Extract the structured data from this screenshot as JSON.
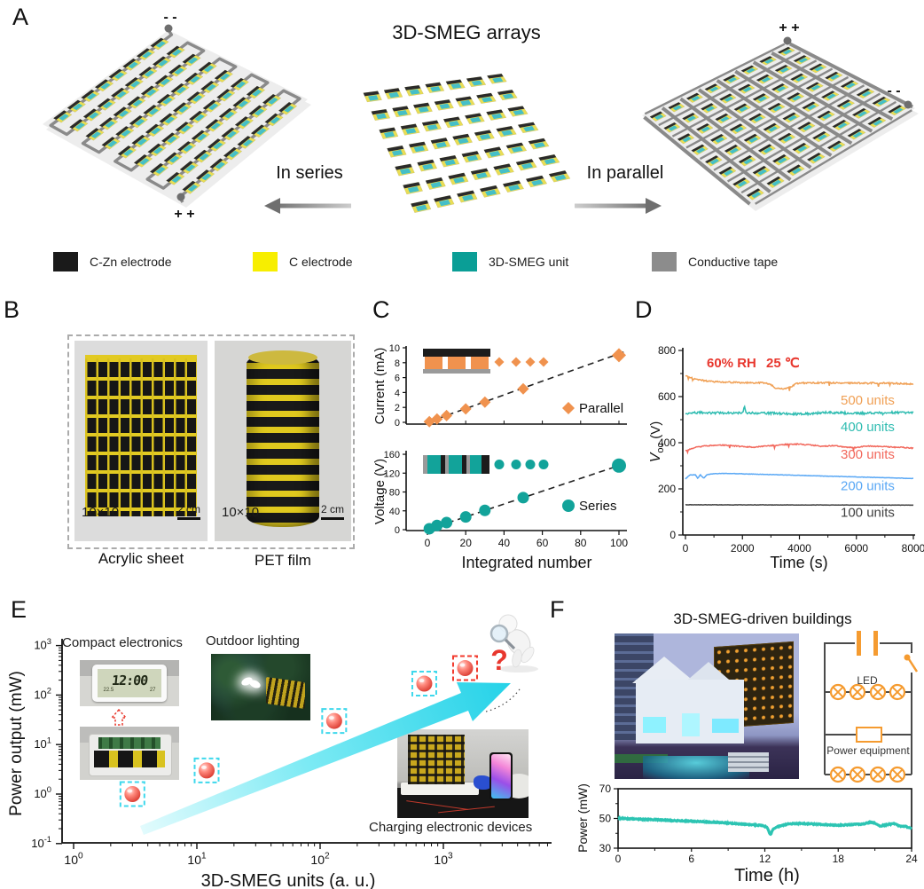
{
  "panel_a": {
    "label": "A",
    "title": "3D-SMEG arrays",
    "series_label": "In series",
    "parallel_label": "In parallel",
    "left_terminal_top": "- -",
    "left_terminal_bottom": "+ +",
    "right_terminal_top": "+ +",
    "right_terminal_side": "- -",
    "legend": [
      {
        "label": "C-Zn electrode",
        "color": "#1a1a1a"
      },
      {
        "label": "C electrode",
        "color": "#f7ee00"
      },
      {
        "label": "3D-SMEG unit",
        "color": "#0a9e96"
      },
      {
        "label": "Conductive tape",
        "color": "#8c8c8c"
      }
    ],
    "colors": {
      "sheet": "#ededed",
      "tape": "#8a8a8a",
      "unit_yellow": "#e9dd55",
      "unit_teal": "#45bfc7",
      "unit_black": "#2a2a2a",
      "terminal": "#6e6e6e"
    }
  },
  "panel_b": {
    "label": "B",
    "photos": [
      {
        "size_label": "10×10",
        "scale_label": "2 cm",
        "caption": "Acrylic sheet"
      },
      {
        "size_label": "10×10",
        "scale_label": "2 cm",
        "caption": "PET film"
      }
    ]
  },
  "panel_c": {
    "label": "C"
  },
  "panel_d": {
    "label": "D"
  },
  "panel_e": {
    "label": "E",
    "question_mark": "?",
    "inset_labels": {
      "compact": "Compact electronics",
      "outdoor": "Outdoor lighting",
      "charging": "Charging electronic devices"
    },
    "clock": {
      "time": "12:00",
      "temp": "22.5",
      "hum": "27"
    }
  },
  "panel_f": {
    "label": "F",
    "title": "3D-SMEG-driven buildings",
    "circuit": {
      "led_label": "LED",
      "equipment_label": "Power equipment",
      "color": "#f59b30"
    }
  },
  "chart_data": [
    {
      "id": "c_current",
      "type": "scatter",
      "ylabel": "Current (mA)",
      "ylim": [
        0,
        10
      ],
      "yticks": [
        0,
        2,
        4,
        6,
        8,
        10
      ],
      "xlim": [
        0,
        100
      ],
      "series": [
        {
          "name": "Parallel",
          "marker": "diamond",
          "color": "#f0924e",
          "x": [
            1,
            5,
            10,
            20,
            30,
            50,
            100
          ],
          "y": [
            0.1,
            0.45,
            0.9,
            1.8,
            2.7,
            4.5,
            9
          ]
        }
      ],
      "trend_slope": 0.092,
      "legend_label": "Parallel"
    },
    {
      "id": "c_voltage",
      "type": "scatter",
      "ylabel": "Voltage (V)",
      "xlabel": "Integrated number",
      "ylim": [
        0,
        160
      ],
      "yticks": [
        0,
        40,
        80,
        120,
        160
      ],
      "xlim": [
        0,
        100
      ],
      "xticks": [
        0,
        20,
        40,
        60,
        80,
        100
      ],
      "series": [
        {
          "name": "Series",
          "marker": "circle",
          "color": "#12a39a",
          "x": [
            1,
            5,
            10,
            20,
            30,
            50,
            100
          ],
          "y": [
            2,
            9,
            15,
            27,
            41,
            68,
            136
          ]
        }
      ],
      "trend_slope": 1.36,
      "legend_label": "Series"
    },
    {
      "id": "d_voc",
      "type": "line",
      "xlabel": "Time (s)",
      "ylabel_parts": {
        "main": "V",
        "sub": "oc",
        "unit": " (V)"
      },
      "xlim": [
        0,
        8000
      ],
      "ylim": [
        0,
        800
      ],
      "xticks": [
        0,
        2000,
        4000,
        6000,
        8000
      ],
      "yticks": [
        0,
        200,
        400,
        600,
        800
      ],
      "annotations": [
        {
          "text": "60% RH",
          "color": "#e8372e"
        },
        {
          "text": "25 ℃",
          "color": "#e8372e"
        }
      ],
      "series": [
        {
          "name": "500 units",
          "color": "#f0a055",
          "noise": 3.2,
          "spike_p": 0.02,
          "spike_dv": -14,
          "label_v": 565,
          "anchors": [
            [
              0,
              691
            ],
            [
              300,
              677
            ],
            [
              700,
              668
            ],
            [
              1200,
              663
            ],
            [
              1800,
              661
            ],
            [
              2400,
              660
            ],
            [
              2800,
              659
            ],
            [
              3000,
              651
            ],
            [
              3150,
              638
            ],
            [
              3350,
              633
            ],
            [
              3550,
              635
            ],
            [
              3750,
              645
            ],
            [
              3900,
              657
            ],
            [
              4200,
              659
            ],
            [
              5000,
              660
            ],
            [
              6000,
              658
            ],
            [
              7000,
              659
            ],
            [
              8000,
              654
            ]
          ]
        },
        {
          "name": "400 units",
          "color": "#2fbcb1",
          "noise": 5,
          "spike_p": 0.008,
          "spike_dv": -10,
          "label_v": 450,
          "anchors": [
            [
              0,
              527
            ],
            [
              500,
              531
            ],
            [
              1000,
              529
            ],
            [
              2020,
              530
            ],
            [
              2070,
              562
            ],
            [
              2120,
              530
            ],
            [
              3000,
              528
            ],
            [
              4000,
              524
            ],
            [
              5000,
              531
            ],
            [
              6000,
              527
            ],
            [
              7000,
              531
            ],
            [
              8000,
              529
            ]
          ]
        },
        {
          "name": "300 units",
          "color": "#f2685c",
          "noise": 2.2,
          "spike_p": 0.03,
          "spike_dv": -13,
          "label_v": 330,
          "anchors": [
            [
              0,
              367
            ],
            [
              200,
              372
            ],
            [
              400,
              381
            ],
            [
              800,
              387
            ],
            [
              1200,
              390
            ],
            [
              1600,
              388
            ],
            [
              2000,
              383
            ],
            [
              2400,
              381
            ],
            [
              2800,
              385
            ],
            [
              3200,
              390
            ],
            [
              3600,
              393
            ],
            [
              4000,
              394
            ],
            [
              4400,
              390
            ],
            [
              4800,
              384
            ],
            [
              5200,
              388
            ],
            [
              5600,
              381
            ],
            [
              6000,
              379
            ],
            [
              6400,
              386
            ],
            [
              6800,
              384
            ],
            [
              7200,
              381
            ],
            [
              7600,
              380
            ],
            [
              8000,
              376
            ]
          ]
        },
        {
          "name": "200 units",
          "color": "#5aa8f5",
          "noise": 0.9,
          "spike_p": 0,
          "spike_dv": 0,
          "label_v": 195,
          "anchors": [
            [
              0,
              243
            ],
            [
              150,
              260
            ],
            [
              350,
              261
            ],
            [
              430,
              246
            ],
            [
              520,
              261
            ],
            [
              640,
              246
            ],
            [
              760,
              262
            ],
            [
              1000,
              266
            ],
            [
              1400,
              267
            ],
            [
              3000,
              262
            ],
            [
              5000,
              255
            ],
            [
              8000,
              245
            ]
          ]
        },
        {
          "name": "100 units",
          "color": "#3f3f3f",
          "noise": 0.7,
          "spike_p": 0,
          "spike_dv": 0,
          "label_v": 78,
          "anchors": [
            [
              0,
              131
            ],
            [
              8000,
              129.5
            ]
          ]
        }
      ]
    },
    {
      "id": "e_scaling",
      "type": "scatter",
      "xscale": "log",
      "yscale": "log",
      "xlabel": "3D-SMEG units (a. u.)",
      "ylabel": "Power output (mW)",
      "xlim": [
        1,
        4000
      ],
      "ylim": [
        0.1,
        1000
      ],
      "xtick_exps": [
        0,
        1,
        2,
        3
      ],
      "ytick_exps": [
        3,
        2,
        1,
        0,
        -1
      ],
      "points": [
        {
          "x": 3,
          "y": 1,
          "frame": "cyan"
        },
        {
          "x": 12,
          "y": 3,
          "frame": "cyan"
        },
        {
          "x": 130,
          "y": 30,
          "frame": "cyan"
        },
        {
          "x": 700,
          "y": 170,
          "frame": "cyan"
        },
        {
          "x": 1500,
          "y": 350,
          "frame": "red"
        }
      ],
      "frame_colors": {
        "cyan": "#3ed8ec",
        "red": "#f2392c"
      },
      "point_color": "#e8453c"
    },
    {
      "id": "f_power",
      "type": "line",
      "xlabel": "Time (h)",
      "ylabel": "Power (mW)",
      "xlim": [
        0,
        24
      ],
      "ylim": [
        30,
        70
      ],
      "xticks": [
        0,
        6,
        12,
        18,
        24
      ],
      "yticks": [
        30,
        50,
        70
      ],
      "series": [
        {
          "name": "Power",
          "color": "#2cc4b2",
          "noise": 0.9,
          "anchors": [
            [
              0,
              50.2
            ],
            [
              1,
              49.8
            ],
            [
              2,
              49.4
            ],
            [
              3,
              49.2
            ],
            [
              4,
              48.8
            ],
            [
              5,
              48.4
            ],
            [
              6,
              48.2
            ],
            [
              7,
              47.8
            ],
            [
              8,
              47.4
            ],
            [
              9,
              47
            ],
            [
              10,
              46.3
            ],
            [
              11,
              45.8
            ],
            [
              11.8,
              45.2
            ],
            [
              12.2,
              44
            ],
            [
              12.45,
              38.8
            ],
            [
              12.7,
              43
            ],
            [
              13,
              44.5
            ],
            [
              13.5,
              45.5
            ],
            [
              14,
              46.4
            ],
            [
              15,
              46.6
            ],
            [
              16,
              46.3
            ],
            [
              17,
              45.8
            ],
            [
              18,
              45.4
            ],
            [
              19,
              45.9
            ],
            [
              20,
              46.2
            ],
            [
              20.6,
              47.5
            ],
            [
              21,
              46.8
            ],
            [
              21.4,
              44.9
            ],
            [
              22,
              45.8
            ],
            [
              22.6,
              46.5
            ],
            [
              23,
              45
            ],
            [
              23.5,
              44.6
            ],
            [
              24,
              43.4
            ]
          ]
        }
      ]
    }
  ]
}
